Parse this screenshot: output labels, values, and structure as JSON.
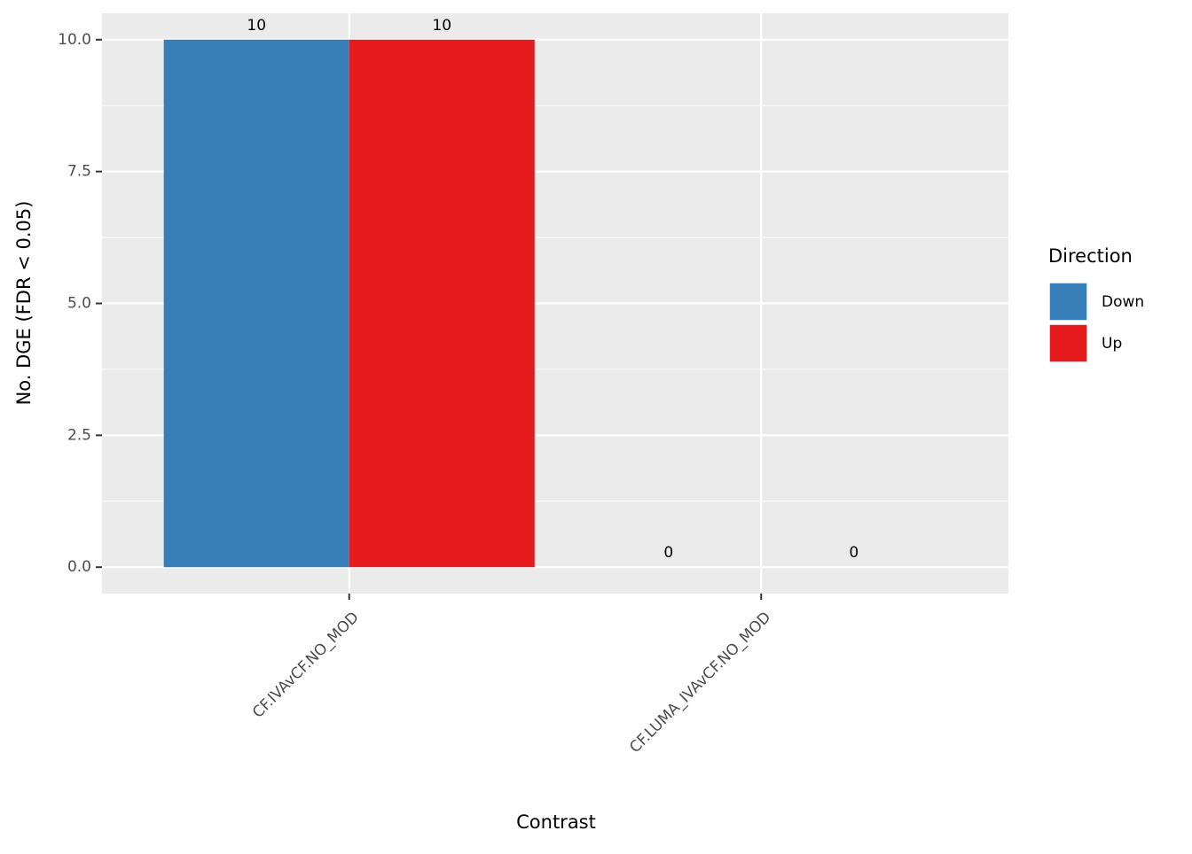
{
  "chart_data": {
    "type": "bar",
    "x_label": "Contrast",
    "y_label": "No. DGE (FDR < 0.05)",
    "categories": [
      "CF.IVAvCF.NO_MOD",
      "CF.LUMA_IVAvCF.NO_MOD"
    ],
    "series": [
      {
        "name": "Down",
        "color": "#377eb8",
        "values": [
          10,
          0
        ]
      },
      {
        "name": "Up",
        "color": "#e41a1c",
        "values": [
          10,
          0
        ]
      }
    ],
    "ylim": [
      -0.5,
      10.5
    ],
    "yticks": [
      {
        "value": 0,
        "label": "0.0"
      },
      {
        "value": 2.5,
        "label": "2.5"
      },
      {
        "value": 5,
        "label": "5.0"
      },
      {
        "value": 7.5,
        "label": "7.5"
      },
      {
        "value": 10,
        "label": "10.0"
      }
    ],
    "grid": true,
    "legend_title": "Direction",
    "legend_position": "right"
  }
}
